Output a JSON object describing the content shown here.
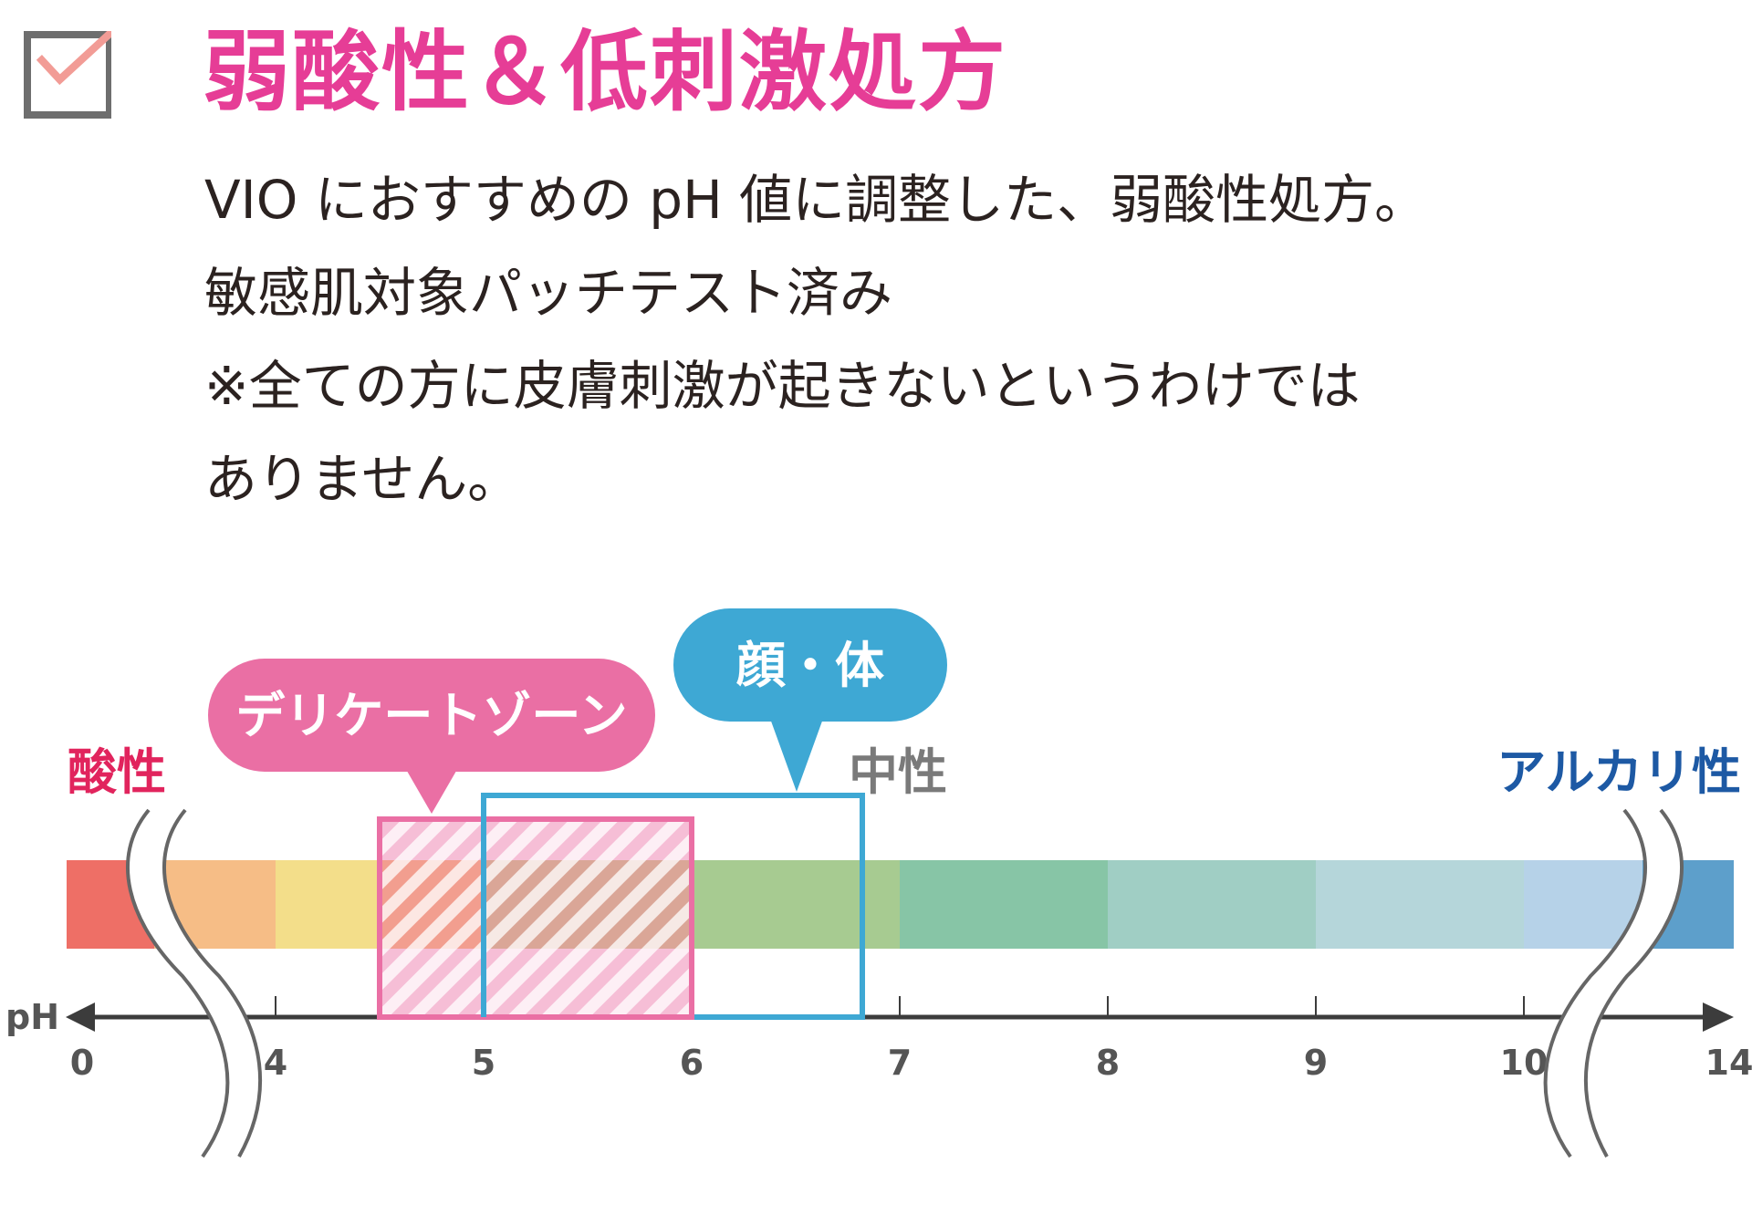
{
  "colors": {
    "title": "#e63d96",
    "check_mark": "#f29c96",
    "checkbox_border": "#6e6e6e",
    "body_text": "#2b2220",
    "acid_label": "#e1245d",
    "neutral_label": "#7a7a7a",
    "alkali_label": "#1d59a4",
    "delicate_zone": "#ea6fa4",
    "face_body_zone": "#3ea8d4",
    "axis": "#3c3c3c"
  },
  "header": {
    "check_icon": "checkbox-checked-icon",
    "title": "弱酸性＆低刺激処方"
  },
  "body": {
    "lines": [
      "VIO におすすめの pH 値に調整した、弱酸性処方。",
      "敏感肌対象パッチテスト済み",
      "※全ての方に皮膚刺激が起きないというわけでは",
      "ありません。"
    ]
  },
  "ph_scale": {
    "axis_label": "pH",
    "acid_label": "酸性",
    "neutral_label": "中性",
    "alkali_label": "アルカリ性",
    "ticks": [
      "0",
      "4",
      "5",
      "6",
      "7",
      "8",
      "9",
      "10",
      "14"
    ],
    "segment_colors": [
      "#ee6f66",
      "#f6bd86",
      "#f3de8a",
      "#f7c57e",
      "#cdd48d",
      "#a7cb91",
      "#87c5a6",
      "#a0cec4",
      "#b5d6da",
      "#b6d2e8",
      "#5d9fcb"
    ],
    "zones": [
      {
        "label": "デリケートゾーン",
        "from": 4.5,
        "to": 6.0
      },
      {
        "label": "顔・体",
        "from": 5.0,
        "to": 6.8
      }
    ]
  }
}
